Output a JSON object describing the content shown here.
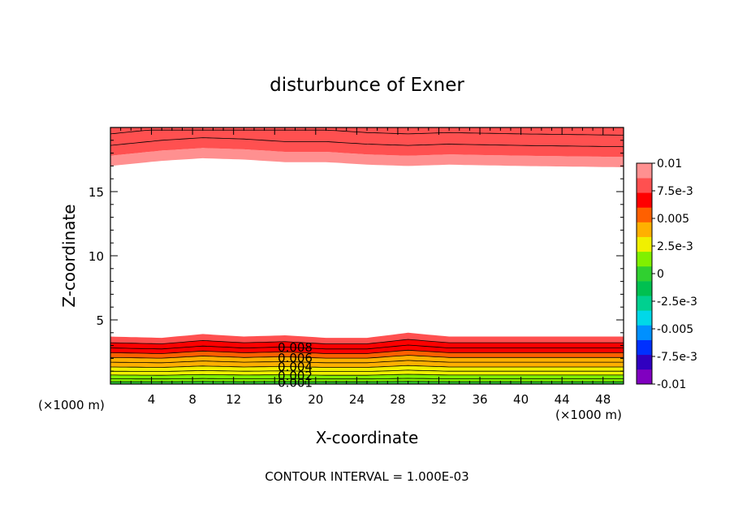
{
  "chart_data": {
    "type": "contour",
    "title": "disturbunce of Exner",
    "xlabel": "X-coordinate",
    "ylabel": "Z-coordinate",
    "x_unit_left": "(×1000 m)",
    "x_unit_right": "(×1000 m)",
    "xlim": [
      0,
      50
    ],
    "ylim": [
      0,
      20
    ],
    "x_ticks": [
      4,
      8,
      12,
      16,
      20,
      24,
      28,
      32,
      36,
      40,
      44,
      48
    ],
    "x_tick_labels": [
      "4",
      "8",
      "12",
      "16",
      "20",
      "24",
      "28",
      "32",
      "36",
      "40",
      "44",
      "48"
    ],
    "y_ticks": [
      5,
      10,
      15
    ],
    "y_tick_labels": [
      "5",
      "10",
      "15"
    ],
    "contour_interval_text": "CONTOUR INTERVAL = 1.000E-03",
    "contour_labels": [
      {
        "text": "0.008",
        "x": 18,
        "z": 2.9
      },
      {
        "text": "0.006",
        "x": 18,
        "z": 2.1
      },
      {
        "text": "0.004",
        "x": 18,
        "z": 1.4
      },
      {
        "text": "0.002",
        "x": 18,
        "z": 0.7
      },
      {
        "text": "0.001",
        "x": 18,
        "z": 0.15
      }
    ],
    "profile_x": [
      0,
      5,
      9,
      13,
      17,
      21,
      25,
      29,
      33,
      40,
      50
    ],
    "bottom_band_top": [
      3.7,
      3.6,
      3.9,
      3.7,
      3.8,
      3.6,
      3.6,
      4.0,
      3.7,
      3.7,
      3.7
    ],
    "top_band_base": [
      17.0,
      17.4,
      17.6,
      17.5,
      17.3,
      17.3,
      17.1,
      17.0,
      17.1,
      17.0,
      16.9
    ],
    "color_scale": {
      "min": -0.01,
      "max": 0.01,
      "labels": [
        "0.01",
        "7.5e-3",
        "0.005",
        "2.5e-3",
        "0",
        "-2.5e-3",
        "-0.005",
        "-7.5e-3",
        "-0.01"
      ],
      "colors": [
        "#8000c0",
        "#3000c0",
        "#0030ff",
        "#0090ff",
        "#00d8e8",
        "#00d090",
        "#00c050",
        "#30d030",
        "#80f000",
        "#f0f000",
        "#ffb000",
        "#ff6000",
        "#ff0000",
        "#ff5050",
        "#ff9090"
      ]
    }
  }
}
